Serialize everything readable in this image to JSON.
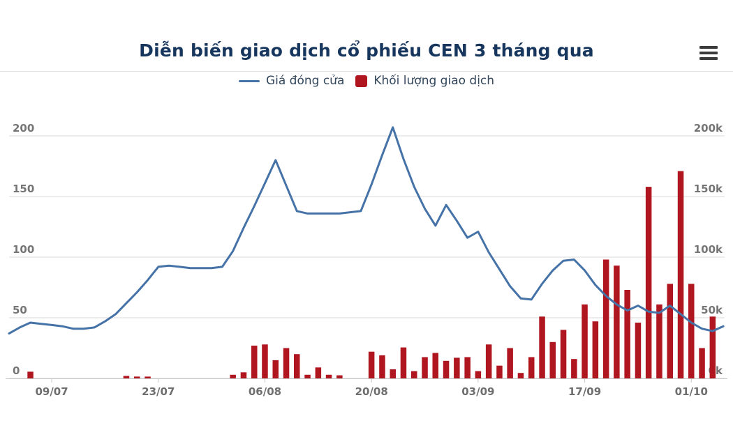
{
  "chart": {
    "title": "Diễn biến giao dịch cổ phiếu CEN 3 tháng qua",
    "legend_items": [
      {
        "label": "Giá đóng cửa"
      },
      {
        "label": "Khối lượng giao dịch"
      }
    ],
    "menu_icon": "hamburger"
  },
  "chart_data": {
    "type": "line+bar",
    "title": "Diễn biến giao dịch cổ phiếu CEN 3 tháng qua",
    "x_unit": "trading-day",
    "x_tick_labels": [
      "09/07",
      "23/07",
      "06/08",
      "20/08",
      "03/09",
      "17/09",
      "01/10"
    ],
    "x_tick_indices": [
      4,
      14,
      24,
      34,
      44,
      54,
      64
    ],
    "left_axis_ticks": [
      0,
      50,
      100,
      150,
      200
    ],
    "right_axis_ticks": [
      "0k",
      "50k",
      "100k",
      "150k",
      "200k"
    ],
    "ylim": [
      0,
      200
    ],
    "grid": "horizontal",
    "legend_position": "top-center",
    "series": [
      {
        "name": "Giá đóng cửa",
        "type": "line",
        "axis": "left",
        "color": "#4572a7",
        "values": [
          37,
          42,
          46,
          45,
          44,
          43,
          41,
          41,
          42,
          47,
          53,
          62,
          71,
          81,
          92,
          93,
          92,
          91,
          91,
          91,
          92,
          105,
          124,
          142,
          161,
          180,
          159,
          138,
          136,
          136,
          136,
          136,
          137,
          138,
          160,
          184,
          207,
          181,
          158,
          140,
          126,
          143,
          130,
          116,
          121,
          104,
          90,
          76,
          66,
          65,
          78,
          89,
          97,
          98,
          89,
          77,
          68,
          61,
          56,
          60,
          55,
          54,
          60,
          53,
          46,
          41,
          39,
          43
        ]
      },
      {
        "name": "Khối lượng giao dịch",
        "type": "bar",
        "axis": "right",
        "unit": "k",
        "color": "#b0161f",
        "values": [
          0,
          0,
          5.5,
          0,
          0,
          0,
          0,
          0,
          0,
          0,
          0,
          2,
          1.5,
          1.5,
          0,
          0,
          0,
          0,
          0,
          0,
          0,
          3,
          5,
          27,
          28,
          15,
          25,
          20,
          3,
          9,
          3,
          2.5,
          0,
          0,
          22,
          19,
          7.5,
          25.5,
          6,
          17.5,
          21,
          14.5,
          17,
          17.5,
          6,
          28,
          10.5,
          25,
          4.5,
          17.5,
          51,
          30,
          40,
          16,
          61,
          47,
          98,
          93,
          73,
          46,
          158,
          61,
          78,
          171,
          78,
          25,
          51,
          0
        ]
      }
    ],
    "colors": {
      "title": "#17365d",
      "axis_labels": "#757575",
      "gridline": "#d9d9d9",
      "axis_line": "#c9c9c9",
      "line_series": "#4572a7",
      "bar_series": "#b0161f"
    }
  }
}
